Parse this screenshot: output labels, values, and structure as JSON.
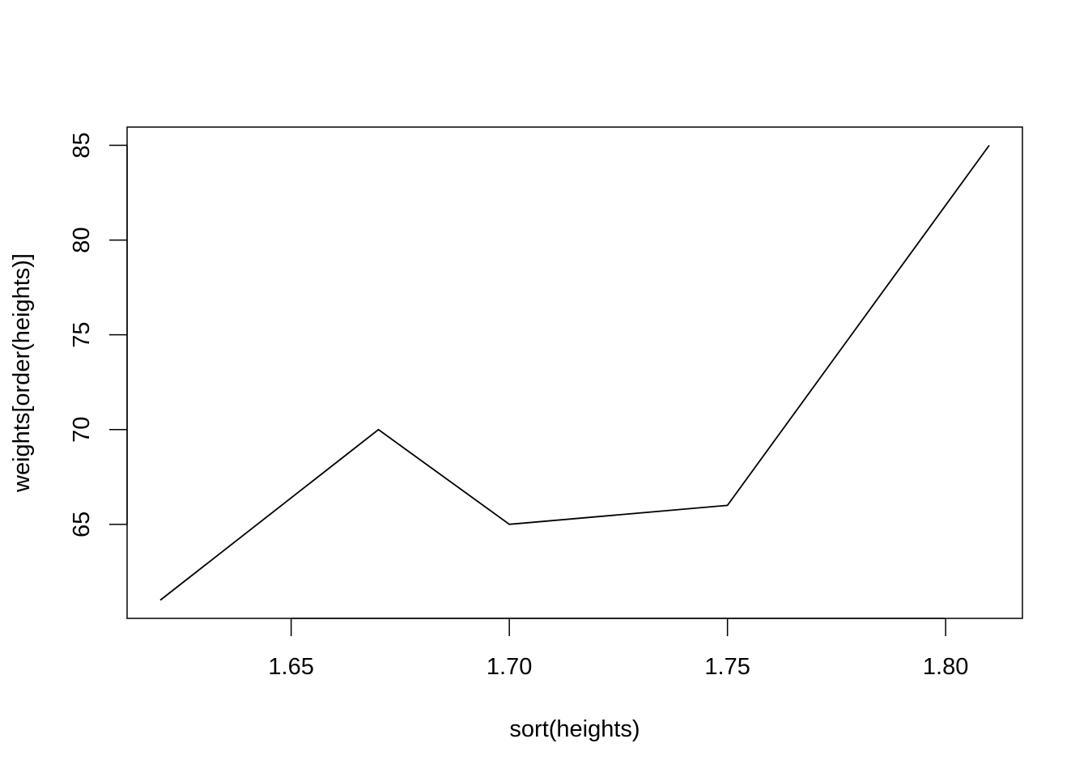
{
  "chart_data": {
    "type": "line",
    "title": "",
    "xlabel": "sort(heights)",
    "ylabel": "weights[order(heights)]",
    "xlim": [
      1.6124,
      1.8176
    ],
    "ylim": [
      60.04,
      85.96
    ],
    "x_ticks": [
      1.65,
      1.7,
      1.75,
      1.8
    ],
    "x_tick_labels": [
      "1.65",
      "1.70",
      "1.75",
      "1.80"
    ],
    "y_ticks": [
      65,
      70,
      75,
      80,
      85
    ],
    "y_tick_labels": [
      "65",
      "70",
      "75",
      "80",
      "85"
    ],
    "grid": false,
    "legend": "none",
    "series": [
      {
        "x": [
          1.62,
          1.67,
          1.7,
          1.75,
          1.81
        ],
        "y": [
          61,
          70,
          65,
          66,
          85
        ],
        "color": "#000000"
      }
    ]
  }
}
